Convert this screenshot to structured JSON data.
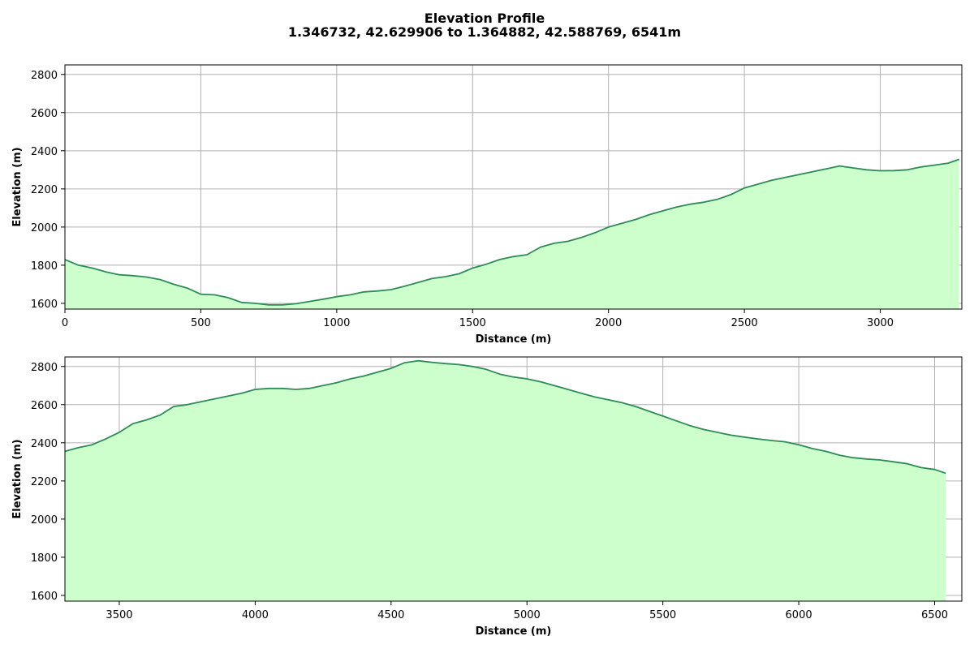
{
  "title": {
    "line1": "Elevation Profile",
    "line2": "1.346732, 42.629906 to 1.364882, 42.588769, 6541m"
  },
  "colors": {
    "line": "#2e8b57",
    "fill": "#ccffcc",
    "grid": "#b0b0b0"
  },
  "chart_data": [
    {
      "type": "area",
      "xlabel": "Distance (m)",
      "ylabel": "Elevation (m)",
      "xlim": [
        0,
        3300
      ],
      "ylim": [
        1570,
        2850
      ],
      "xticks": [
        0,
        500,
        1000,
        1500,
        2000,
        2500,
        3000
      ],
      "yticks": [
        1600,
        1800,
        2000,
        2200,
        2400,
        2600,
        2800
      ],
      "grid": true,
      "series": [
        {
          "x": [
            0,
            50,
            100,
            150,
            200,
            250,
            300,
            350,
            400,
            450,
            500,
            550,
            600,
            650,
            700,
            750,
            800,
            850,
            900,
            950,
            1000,
            1050,
            1100,
            1150,
            1200,
            1250,
            1300,
            1350,
            1400,
            1450,
            1500,
            1550,
            1600,
            1650,
            1700,
            1750,
            1800,
            1850,
            1900,
            1950,
            2000,
            2050,
            2100,
            2150,
            2200,
            2250,
            2300,
            2350,
            2400,
            2450,
            2500,
            2550,
            2600,
            2650,
            2700,
            2750,
            2800,
            2850,
            2900,
            2950,
            3000,
            3050,
            3100,
            3150,
            3200,
            3250,
            3290
          ],
          "y": [
            1830,
            1800,
            1785,
            1765,
            1750,
            1745,
            1738,
            1725,
            1700,
            1680,
            1648,
            1645,
            1630,
            1605,
            1600,
            1592,
            1592,
            1598,
            1610,
            1622,
            1635,
            1645,
            1660,
            1665,
            1672,
            1690,
            1710,
            1730,
            1740,
            1755,
            1785,
            1805,
            1830,
            1845,
            1855,
            1895,
            1915,
            1925,
            1945,
            1970,
            2000,
            2020,
            2040,
            2065,
            2085,
            2105,
            2120,
            2130,
            2145,
            2170,
            2205,
            2225,
            2245,
            2260,
            2275,
            2290,
            2305,
            2320,
            2310,
            2300,
            2295,
            2296,
            2300,
            2315,
            2325,
            2335,
            2355
          ]
        }
      ]
    },
    {
      "type": "area",
      "xlabel": "Distance (m)",
      "ylabel": "Elevation (m)",
      "xlim": [
        3300,
        6600
      ],
      "ylim": [
        1570,
        2850
      ],
      "xticks": [
        3500,
        4000,
        4500,
        5000,
        5500,
        6000,
        6500
      ],
      "yticks": [
        1600,
        1800,
        2000,
        2200,
        2400,
        2600,
        2800
      ],
      "grid": true,
      "series": [
        {
          "x": [
            3300,
            3350,
            3400,
            3450,
            3500,
            3550,
            3600,
            3650,
            3700,
            3750,
            3800,
            3850,
            3900,
            3950,
            4000,
            4050,
            4100,
            4150,
            4200,
            4250,
            4300,
            4350,
            4400,
            4450,
            4500,
            4550,
            4600,
            4650,
            4700,
            4750,
            4800,
            4850,
            4900,
            4950,
            5000,
            5050,
            5100,
            5150,
            5200,
            5250,
            5300,
            5350,
            5400,
            5450,
            5500,
            5550,
            5600,
            5650,
            5700,
            5750,
            5800,
            5850,
            5900,
            5950,
            6000,
            6050,
            6100,
            6150,
            6200,
            6250,
            6300,
            6350,
            6400,
            6450,
            6500,
            6541
          ],
          "y": [
            2355,
            2375,
            2390,
            2420,
            2455,
            2500,
            2520,
            2545,
            2590,
            2600,
            2615,
            2630,
            2645,
            2660,
            2680,
            2685,
            2685,
            2680,
            2685,
            2700,
            2715,
            2735,
            2750,
            2770,
            2790,
            2820,
            2830,
            2822,
            2815,
            2810,
            2800,
            2785,
            2760,
            2745,
            2735,
            2720,
            2700,
            2680,
            2660,
            2640,
            2625,
            2610,
            2590,
            2565,
            2540,
            2515,
            2490,
            2470,
            2455,
            2440,
            2430,
            2420,
            2412,
            2405,
            2390,
            2370,
            2355,
            2335,
            2322,
            2315,
            2310,
            2300,
            2290,
            2270,
            2260,
            2240
          ]
        }
      ]
    }
  ]
}
